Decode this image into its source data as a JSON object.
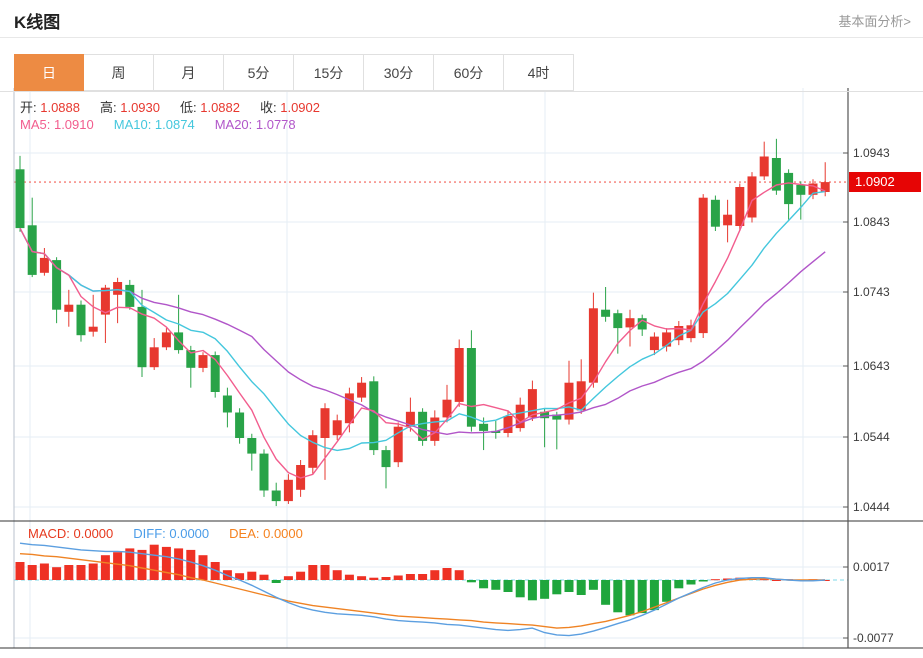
{
  "header": {
    "title": "K线图",
    "link": "基本面分析>"
  },
  "tabs": [
    {
      "label": "日",
      "selected": true
    },
    {
      "label": "周",
      "selected": false
    },
    {
      "label": "月",
      "selected": false
    },
    {
      "label": "5分",
      "selected": false
    },
    {
      "label": "15分",
      "selected": false
    },
    {
      "label": "30分",
      "selected": false
    },
    {
      "label": "60分",
      "selected": false
    },
    {
      "label": "4时",
      "selected": false
    }
  ],
  "legend": {
    "ohlc": [
      {
        "label": "开:",
        "value": "1.0888"
      },
      {
        "label": "高:",
        "value": "1.0930"
      },
      {
        "label": "低:",
        "value": "1.0882"
      },
      {
        "label": "收:",
        "value": "1.0902"
      }
    ],
    "ma": [
      {
        "label": "MA5:",
        "value": "1.0910",
        "color": "#f25d8e"
      },
      {
        "label": "MA10:",
        "value": "1.0874",
        "color": "#44c7dd"
      },
      {
        "label": "MA20:",
        "value": "1.0778",
        "color": "#b156c9"
      }
    ],
    "macd": [
      {
        "label": "MACD:",
        "value": "0.0000",
        "color": "#e6391e"
      },
      {
        "label": "DIFF:",
        "value": "0.0000",
        "color": "#4a9ce8"
      },
      {
        "label": "DEA:",
        "value": "0.0000",
        "color": "#f5821f"
      }
    ]
  },
  "price_tag": "1.0902",
  "colors": {
    "up": "#e7382f",
    "down": "#29a348",
    "macd_up": "#ee3124",
    "macd_down": "#1fa63c",
    "ma5": "#f25d8e",
    "ma10": "#44c7dd",
    "ma20": "#b156c9",
    "diff": "#5c9fe0",
    "dea": "#ef8324",
    "tab_active": "#ed8b43",
    "price_tag_bg": "#e60505",
    "dotted_line": "#f57c74",
    "zero_dash": "#7fd8e8",
    "grid": "#e6edf4",
    "axis": "#555",
    "label": "#3a3a3a"
  },
  "chart_data": {
    "type": "candlestick+macd",
    "title": "K线图 daily candlestick with MA5/MA10/MA20 and MACD",
    "y_ticks": [
      1.0943,
      1.0843,
      1.0743,
      1.0643,
      1.0544,
      1.0444
    ],
    "y_tick_labels": [
      "1.0943",
      "1.0843",
      "1.0743",
      "1.0643",
      "1.0544",
      "1.0444"
    ],
    "macd_ticks": [
      0.0017,
      -0.0077
    ],
    "macd_tick_labels": [
      "0.0017",
      "-0.0077"
    ],
    "last_price": 1.0902,
    "ohlc_readout": {
      "open": 1.0888,
      "high": 1.093,
      "low": 1.0882,
      "close": 1.0902
    },
    "ma_readout": {
      "ma5": 1.091,
      "ma10": 1.0874,
      "ma20": 1.0778
    },
    "candles": [
      [
        1.092,
        1.0939,
        1.0832,
        1.0837
      ],
      [
        1.0841,
        1.088,
        1.0768,
        1.0771
      ],
      [
        1.0774,
        1.0809,
        1.077,
        1.0795
      ],
      [
        1.0792,
        1.0796,
        1.0703,
        1.0722
      ],
      [
        1.0719,
        1.075,
        1.0698,
        1.0729
      ],
      [
        1.0729,
        1.0735,
        1.0677,
        1.0686
      ],
      [
        1.0691,
        1.0743,
        1.0684,
        1.0698
      ],
      [
        1.0715,
        1.0757,
        1.0675,
        1.0753
      ],
      [
        1.0743,
        1.0767,
        1.0703,
        1.0761
      ],
      [
        1.0757,
        1.0764,
        1.0722,
        1.0726
      ],
      [
        1.0726,
        1.075,
        1.0627,
        1.0641
      ],
      [
        1.0641,
        1.0682,
        1.0637,
        1.0669
      ],
      [
        1.0669,
        1.0696,
        1.0665,
        1.069
      ],
      [
        1.069,
        1.0743,
        1.066,
        1.0665
      ],
      [
        1.0665,
        1.0671,
        1.0612,
        1.064
      ],
      [
        1.064,
        1.0662,
        1.0634,
        1.0658
      ],
      [
        1.0658,
        1.0663,
        1.0598,
        1.0606
      ],
      [
        1.0601,
        1.0612,
        1.0556,
        1.0577
      ],
      [
        1.0577,
        1.0583,
        1.0533,
        1.0541
      ],
      [
        1.0541,
        1.0547,
        1.0495,
        1.0519
      ],
      [
        1.0519,
        1.0525,
        1.0458,
        1.0467
      ],
      [
        1.0467,
        1.0478,
        1.0445,
        1.0452
      ],
      [
        1.0452,
        1.049,
        1.0448,
        1.0482
      ],
      [
        1.0468,
        1.051,
        1.0458,
        1.0503
      ],
      [
        1.0499,
        1.0552,
        1.049,
        1.0545
      ],
      [
        1.0541,
        1.059,
        1.0482,
        1.0583
      ],
      [
        1.0545,
        1.0574,
        1.0538,
        1.0566
      ],
      [
        1.0562,
        1.0612,
        1.0549,
        1.0604
      ],
      [
        1.0598,
        1.0627,
        1.0592,
        1.0619
      ],
      [
        1.0621,
        1.0628,
        1.0517,
        1.0524
      ],
      [
        1.0524,
        1.053,
        1.047,
        1.05
      ],
      [
        1.0507,
        1.0563,
        1.05,
        1.0557
      ],
      [
        1.0557,
        1.0598,
        1.055,
        1.0578
      ],
      [
        1.0578,
        1.0583,
        1.053,
        1.0537
      ],
      [
        1.0537,
        1.058,
        1.053,
        1.057
      ],
      [
        1.057,
        1.0616,
        1.0563,
        1.0595
      ],
      [
        1.0592,
        1.068,
        1.0585,
        1.0668
      ],
      [
        1.0668,
        1.0693,
        1.055,
        1.0557
      ],
      [
        1.0561,
        1.057,
        1.0524,
        1.0551
      ],
      [
        1.0551,
        1.0565,
        1.054,
        1.0548
      ],
      [
        1.0548,
        1.058,
        1.0542,
        1.0572
      ],
      [
        1.0555,
        1.0598,
        1.055,
        1.0588
      ],
      [
        1.057,
        1.0622,
        1.0565,
        1.061
      ],
      [
        1.0578,
        1.0582,
        1.0528,
        1.0569
      ],
      [
        1.0574,
        1.0578,
        1.0525,
        1.0567
      ],
      [
        1.0567,
        1.065,
        1.056,
        1.0619
      ],
      [
        1.058,
        1.0652,
        1.0575,
        1.0621
      ],
      [
        1.0619,
        1.0746,
        1.0612,
        1.0724
      ],
      [
        1.0722,
        1.0754,
        1.0705,
        1.0712
      ],
      [
        1.0717,
        1.0722,
        1.066,
        1.0696
      ],
      [
        1.0697,
        1.0722,
        1.067,
        1.071
      ],
      [
        1.071,
        1.0715,
        1.0685,
        1.0694
      ],
      [
        1.0665,
        1.069,
        1.0658,
        1.0684
      ],
      [
        1.067,
        1.0696,
        1.0663,
        1.069
      ],
      [
        1.0679,
        1.0706,
        1.0672,
        1.0699
      ],
      [
        1.0682,
        1.0708,
        1.0676,
        1.07
      ],
      [
        1.0689,
        1.0885,
        1.0682,
        1.088
      ],
      [
        1.0877,
        1.0883,
        1.0833,
        1.0839
      ],
      [
        1.0841,
        1.0877,
        1.0817,
        1.0856
      ],
      [
        1.084,
        1.09,
        1.0833,
        1.0895
      ],
      [
        1.0852,
        1.0916,
        1.0845,
        1.091
      ],
      [
        1.091,
        1.0959,
        1.0905,
        1.0938
      ],
      [
        1.0936,
        1.0963,
        1.0884,
        1.089
      ],
      [
        1.0915,
        1.092,
        1.0849,
        1.0871
      ],
      [
        1.0898,
        1.0903,
        1.0849,
        1.0884
      ],
      [
        1.0884,
        1.0906,
        1.0878,
        1.09
      ],
      [
        1.0888,
        1.093,
        1.0882,
        1.0902
      ]
    ],
    "macd": {
      "hist": [
        0.0024,
        0.002,
        0.0022,
        0.0017,
        0.002,
        0.002,
        0.0022,
        0.0033,
        0.0037,
        0.0042,
        0.004,
        0.0047,
        0.0044,
        0.0042,
        0.004,
        0.0033,
        0.0024,
        0.0013,
        0.0009,
        0.0011,
        0.0007,
        -0.0004,
        0.0005,
        0.0011,
        0.002,
        0.002,
        0.0013,
        0.0007,
        0.0005,
        0.0003,
        0.0004,
        0.0006,
        0.0008,
        0.0008,
        0.0013,
        0.0016,
        0.0013,
        -0.0003,
        -0.0011,
        -0.0013,
        -0.0016,
        -0.0023,
        -0.0027,
        -0.0025,
        -0.0019,
        -0.0016,
        -0.002,
        -0.0013,
        -0.0033,
        -0.0043,
        -0.0047,
        -0.0044,
        -0.004,
        -0.0029,
        -0.0011,
        -0.0006,
        -0.0002,
        0.0001,
        0.0002,
        0.0003,
        0.0002,
        0.0001,
        0.0,
        0.0001,
        0.0,
        0.0001,
        0.0
      ],
      "diff": [
        0.0049,
        0.0047,
        0.0046,
        0.0044,
        0.0042,
        0.004,
        0.0039,
        0.0038,
        0.0038,
        0.0037,
        0.0035,
        0.0033,
        0.0031,
        0.0028,
        0.0024,
        0.0019,
        0.0013,
        0.0006,
        0.0,
        -0.0007,
        -0.0015,
        -0.0023,
        -0.003,
        -0.0036,
        -0.004,
        -0.0043,
        -0.0045,
        -0.0046,
        -0.0047,
        -0.0049,
        -0.0052,
        -0.0054,
        -0.0055,
        -0.0056,
        -0.0057,
        -0.0059,
        -0.006,
        -0.0062,
        -0.0064,
        -0.0066,
        -0.0067,
        -0.0066,
        -0.0064,
        -0.007,
        -0.0073,
        -0.0074,
        -0.0072,
        -0.0068,
        -0.0063,
        -0.0058,
        -0.0053,
        -0.0047,
        -0.004,
        -0.0032,
        -0.0024,
        -0.0017,
        -0.001,
        -0.0004,
        0.0,
        0.0002,
        0.0003,
        0.0003,
        0.0001,
        0.0,
        -0.0001,
        -0.0001,
        0.0
      ],
      "dea": [
        0.0035,
        0.0034,
        0.0032,
        0.0031,
        0.0029,
        0.0027,
        0.0025,
        0.0023,
        0.0021,
        0.0019,
        0.0016,
        0.0013,
        0.001,
        0.0007,
        0.0003,
        0.0,
        -0.0004,
        -0.0008,
        -0.0012,
        -0.0016,
        -0.002,
        -0.0024,
        -0.0028,
        -0.0031,
        -0.0034,
        -0.0036,
        -0.0038,
        -0.004,
        -0.0042,
        -0.0044,
        -0.0046,
        -0.0048,
        -0.0049,
        -0.005,
        -0.0051,
        -0.0052,
        -0.0053,
        -0.0054,
        -0.0056,
        -0.0057,
        -0.0058,
        -0.0059,
        -0.006,
        -0.0062,
        -0.0064,
        -0.0063,
        -0.0061,
        -0.0058,
        -0.0055,
        -0.0051,
        -0.0047,
        -0.0042,
        -0.0036,
        -0.003,
        -0.0024,
        -0.0018,
        -0.0012,
        -0.0007,
        -0.0003,
        0.0,
        0.0001,
        0.0002,
        0.0001,
        0.0,
        0.0,
        0.0,
        0.0
      ]
    },
    "layout": {
      "plot_left": 14,
      "plot_right": 848,
      "plot_top": 88,
      "pane_divider": 521,
      "plot_bottom": 648,
      "main_tick_y": [
        153,
        222,
        292,
        366,
        437,
        507
      ],
      "macd_tick_y": [
        567,
        638
      ],
      "macd_zero_y": 580,
      "v_grid_x": [
        30,
        287,
        545,
        803
      ],
      "candle_start_x": 20,
      "candle_step": 12.2,
      "candle_width": 9,
      "grid": true,
      "legend_position": "top-left"
    }
  }
}
